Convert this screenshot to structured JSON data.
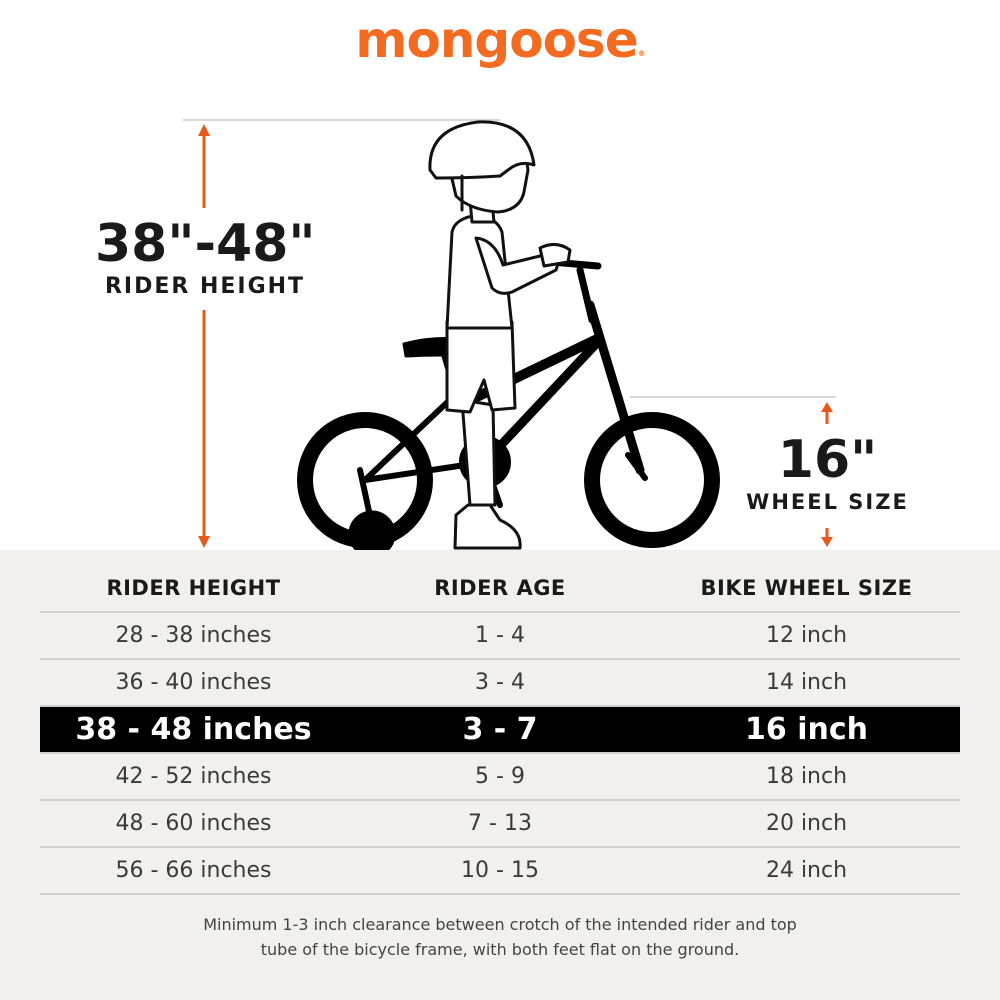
{
  "brand": {
    "name": "mongoose",
    "registered_mark": "®",
    "color": "#f26b21"
  },
  "callouts": {
    "rider_height_value": "38\"-48\"",
    "rider_height_label": "RIDER HEIGHT",
    "wheel_size_value": "16\"",
    "wheel_size_label": "WHEEL SIZE",
    "arrow_color": "#e8581c"
  },
  "table": {
    "headers": [
      "RIDER HEIGHT",
      "RIDER AGE",
      "BIKE WHEEL SIZE"
    ],
    "rows": [
      [
        "28 - 38 inches",
        "1 - 4",
        "12 inch"
      ],
      [
        "36 - 40 inches",
        "3 - 4",
        "14 inch"
      ],
      [
        "38 - 48 inches",
        "3 - 7",
        "16 inch"
      ],
      [
        "42 - 52 inches",
        "5 - 9",
        "18 inch"
      ],
      [
        "48 - 60 inches",
        "7 - 13",
        "20 inch"
      ],
      [
        "56 - 66 inches",
        "10 - 15",
        "24 inch"
      ]
    ],
    "highlighted_row": 2
  },
  "note": {
    "line1": "Minimum 1-3 inch clearance between crotch of the intended rider and top",
    "line2": "tube of the bicycle frame, with both feet flat on the ground."
  }
}
